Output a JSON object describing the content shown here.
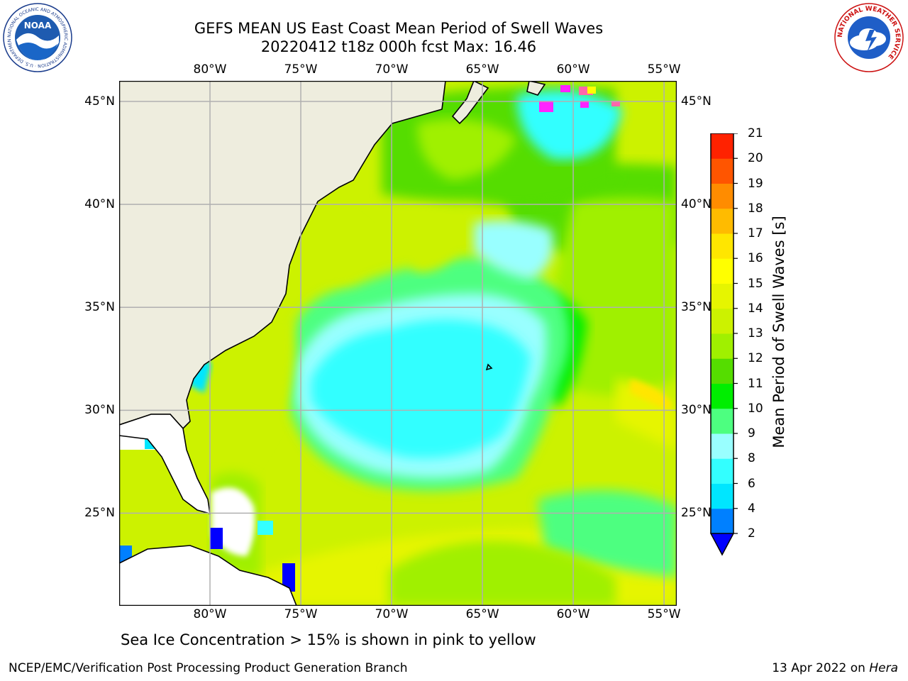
{
  "title": {
    "line1": "GEFS MEAN US East Coast Mean Period of Swell Waves",
    "line2": "20220412 t18z 000h fcst   Max: 16.46"
  },
  "logos": {
    "left": {
      "icon": "noaa-logo",
      "text": "NOAA",
      "ring_text": "NATIONAL OCEANIC AND ATMOSPHERIC ADMINISTRATION · U.S. DEPARTMENT OF COMMERCE"
    },
    "right": {
      "icon": "national-weather-service-logo",
      "ring_text": "NATIONAL WEATHER SERVICE"
    }
  },
  "map": {
    "lon_range": [
      -85,
      -54.3
    ],
    "lat_range": [
      20.5,
      46
    ],
    "lon_ticks": [
      {
        "value": -80,
        "label": "80°W"
      },
      {
        "value": -75,
        "label": "75°W"
      },
      {
        "value": -70,
        "label": "70°W"
      },
      {
        "value": -65,
        "label": "65°W"
      },
      {
        "value": -60,
        "label": "60°W"
      },
      {
        "value": -55,
        "label": "55°W"
      }
    ],
    "lat_ticks": [
      {
        "value": 45,
        "label": "45°N"
      },
      {
        "value": 40,
        "label": "40°N"
      },
      {
        "value": 35,
        "label": "35°N"
      },
      {
        "value": 30,
        "label": "30°N"
      },
      {
        "value": 25,
        "label": "25°N"
      }
    ],
    "gridlines": true,
    "land_color": "#eeedde",
    "ocean_default_color": "#ccf200",
    "sea_ice_colors": [
      "#ff22ff",
      "#ff66aa",
      "#ffff00"
    ]
  },
  "colorbar": {
    "label": "Mean Period of Swell Waves [s]",
    "levels": [
      "2",
      "4",
      "6",
      "8",
      "9",
      "10",
      "11",
      "12",
      "13",
      "14",
      "15",
      "16",
      "17",
      "18",
      "19",
      "20",
      "21"
    ],
    "colors": [
      "#0080ff",
      "#00e6ff",
      "#33ffff",
      "#99ffff",
      "#4dff80",
      "#00ee00",
      "#55dd00",
      "#a0f000",
      "#ccf200",
      "#e6f500",
      "#ffff00",
      "#ffe600",
      "#ffbb00",
      "#ff8c00",
      "#ff5500",
      "#ff2200"
    ],
    "under_color": "#0000ff",
    "extend": "min"
  },
  "note": "Sea Ice Concentration > 15% is shown in pink to yellow",
  "footer": {
    "left": "NCEP/EMC/Verification Post Processing Product Generation Branch",
    "date": "13 Apr 2022 on ",
    "host": "Hera"
  }
}
